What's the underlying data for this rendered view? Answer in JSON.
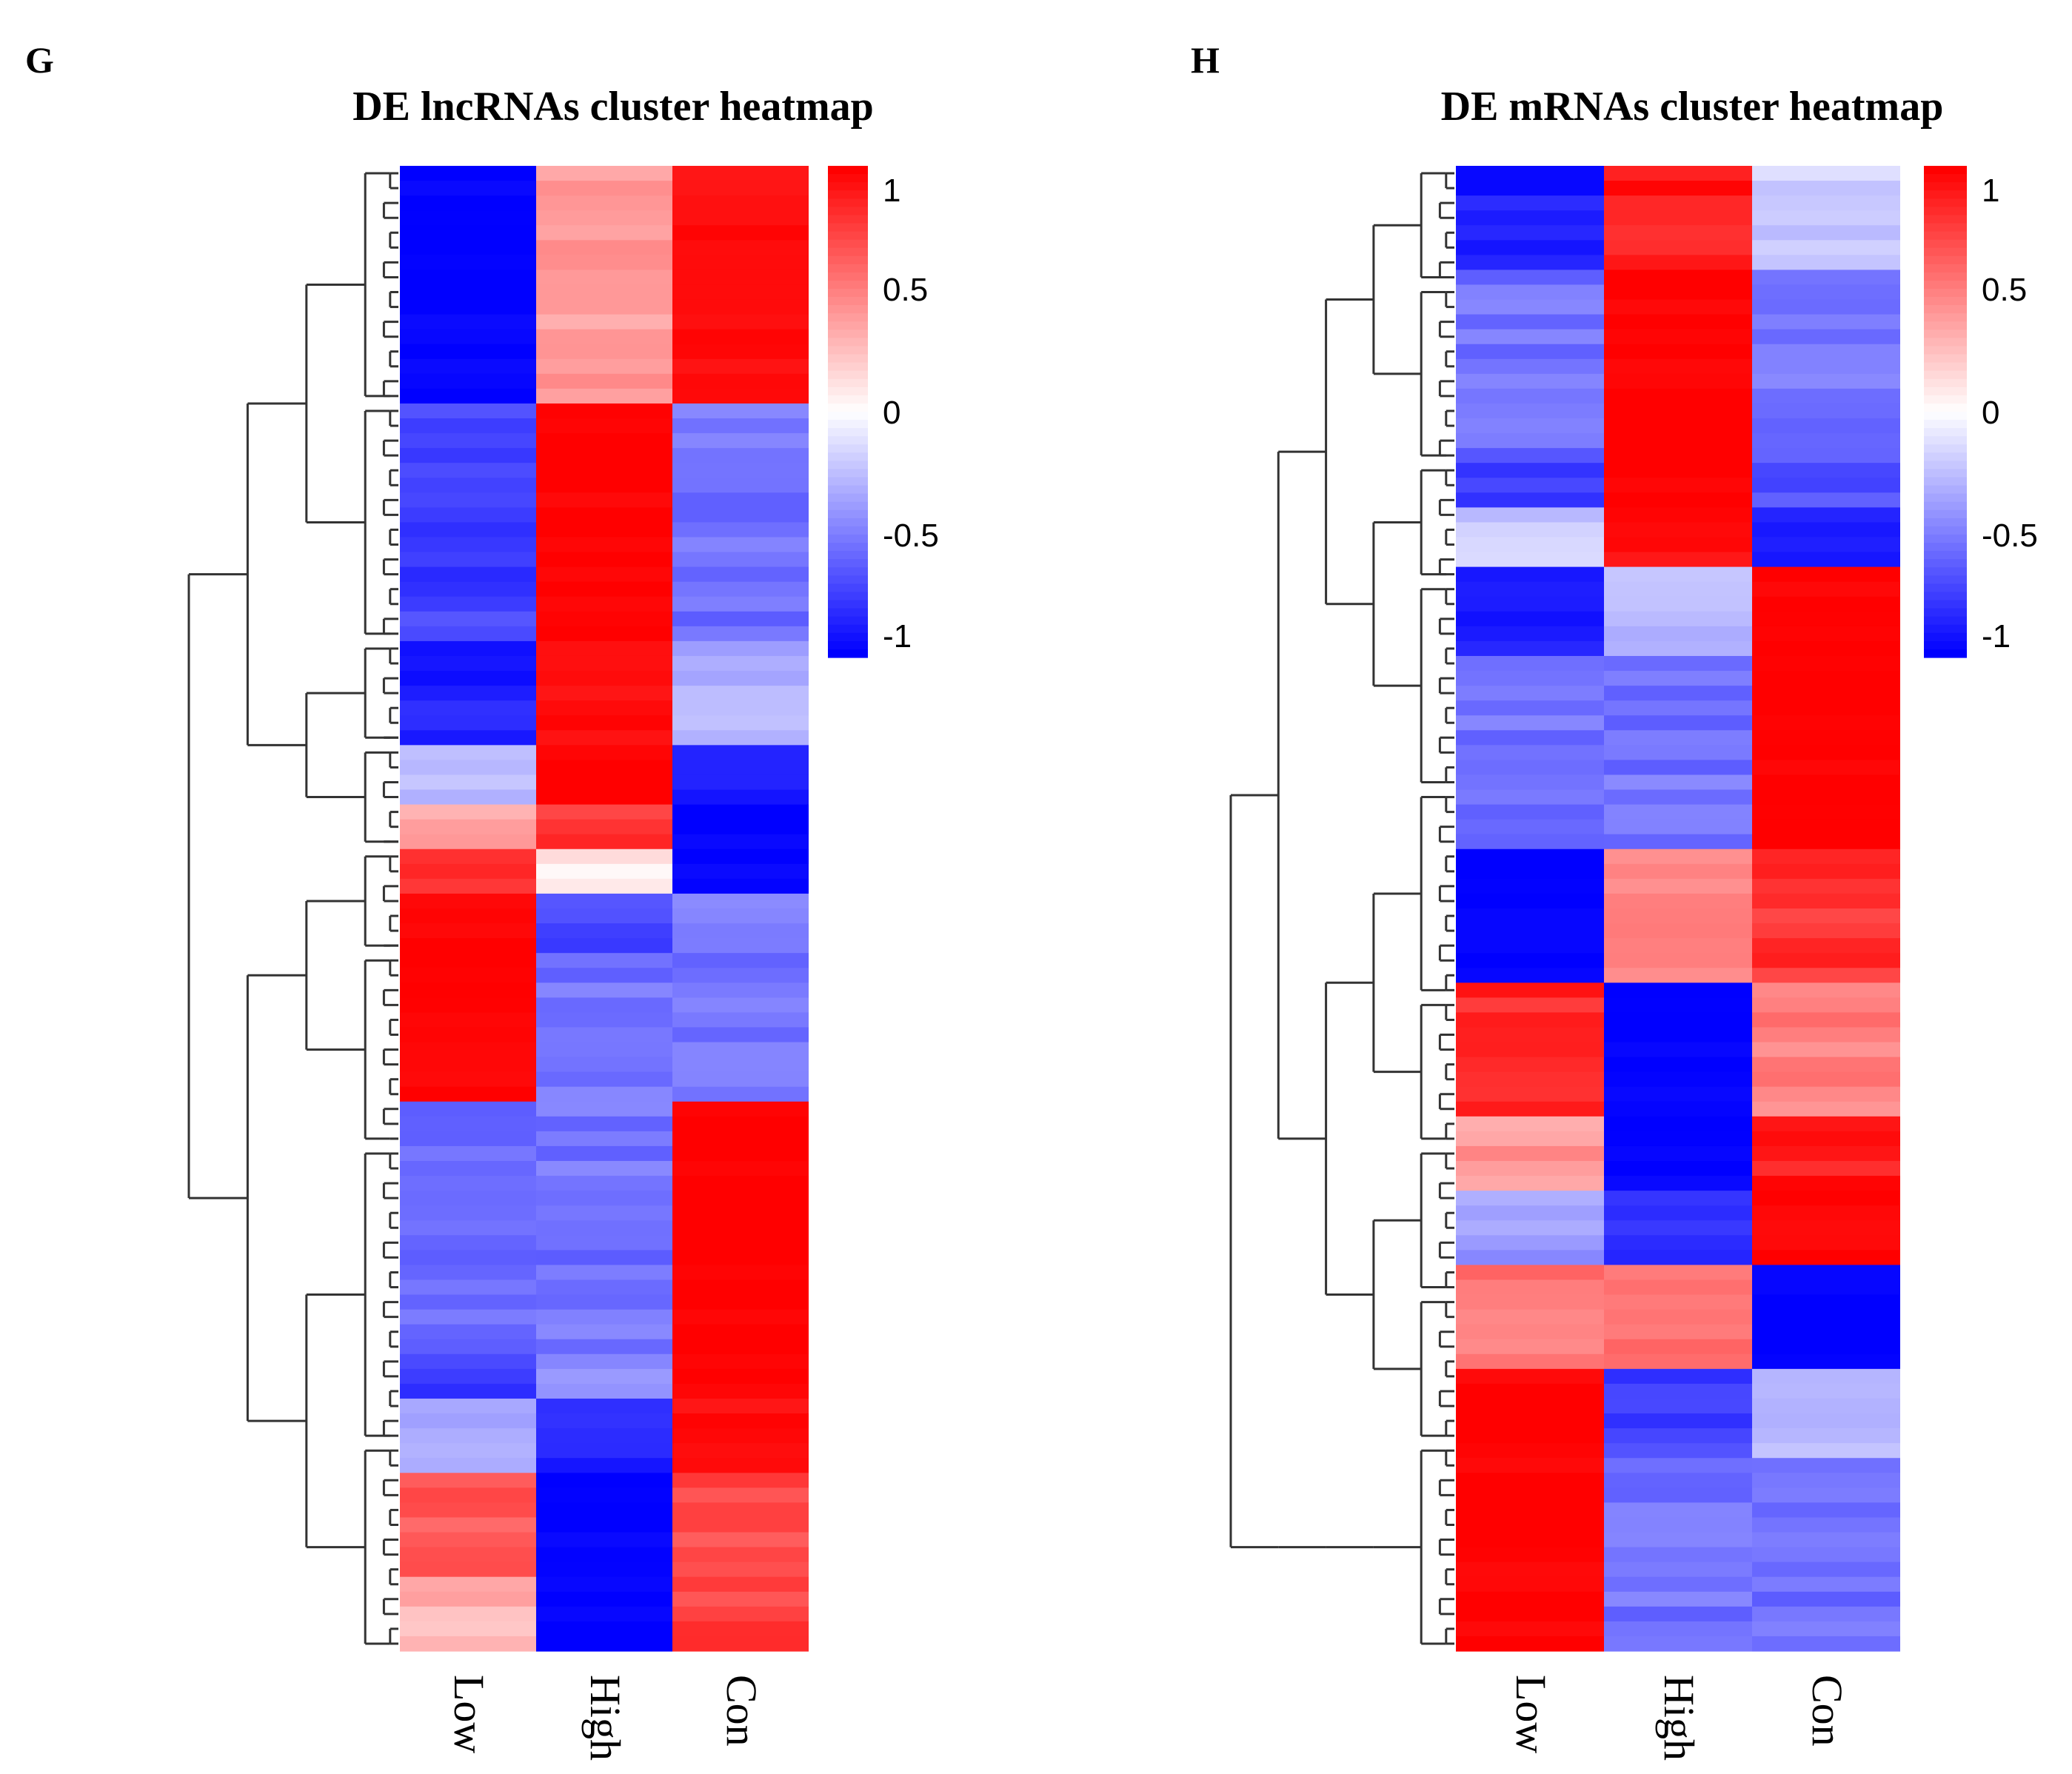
{
  "colors": {
    "low": "#0000ff",
    "mid": "#ffffff",
    "high": "#ff0000",
    "dendrogram": "#333333"
  },
  "chart_data": [
    {
      "type": "heatmap",
      "panel_letter": "G",
      "title": "DE lncRNAs cluster heatmap",
      "columns": [
        "Low",
        "High",
        "Con"
      ],
      "color_scale": {
        "min": -1,
        "max": 1,
        "ticks": [
          1,
          0.5,
          0,
          -0.5,
          -1
        ],
        "tick_labels": [
          "1",
          "0.5",
          "0",
          "-0.5",
          "-1"
        ]
      },
      "row_count": 100,
      "blocks": [
        {
          "rows": 16,
          "values": [
            -1.0,
            0.4,
            0.95
          ]
        },
        {
          "rows": 16,
          "values": [
            -0.75,
            1.0,
            -0.55
          ]
        },
        {
          "rows": 7,
          "values": [
            -0.9,
            0.95,
            -0.3
          ]
        },
        {
          "rows": 4,
          "values": [
            -0.3,
            1.0,
            -0.85
          ]
        },
        {
          "rows": 3,
          "values": [
            0.35,
            0.8,
            -1.0
          ]
        },
        {
          "rows": 3,
          "values": [
            0.85,
            0.1,
            -1.0
          ]
        },
        {
          "rows": 4,
          "values": [
            1.0,
            -0.75,
            -0.5
          ]
        },
        {
          "rows": 10,
          "values": [
            1.0,
            -0.55,
            -0.55
          ]
        },
        {
          "rows": 17,
          "values": [
            -0.55,
            -0.55,
            1.0
          ]
        },
        {
          "rows": 3,
          "values": [
            -0.75,
            -0.4,
            1.0
          ]
        },
        {
          "rows": 5,
          "values": [
            -0.3,
            -0.85,
            0.95
          ]
        },
        {
          "rows": 7,
          "values": [
            0.65,
            -1.0,
            0.7
          ]
        },
        {
          "rows": 5,
          "values": [
            0.3,
            -1.0,
            0.75
          ]
        }
      ],
      "dendrogram_groups": [
        16,
        16,
        7,
        7,
        7,
        13,
        20,
        14
      ]
    },
    {
      "type": "heatmap",
      "panel_letter": "H",
      "title": "DE mRNAs cluster heatmap",
      "columns": [
        "Low",
        "High",
        "Con"
      ],
      "color_scale": {
        "min": -1,
        "max": 1,
        "ticks": [
          1,
          0.5,
          0,
          -0.5,
          -1
        ],
        "tick_labels": [
          "1",
          "0.5",
          "0",
          "-0.5",
          "-1"
        ]
      },
      "row_count": 100,
      "blocks": [
        {
          "rows": 7,
          "values": [
            -0.9,
            0.9,
            -0.2
          ]
        },
        {
          "rows": 12,
          "values": [
            -0.55,
            1.0,
            -0.55
          ]
        },
        {
          "rows": 4,
          "values": [
            -0.75,
            1.0,
            -0.65
          ]
        },
        {
          "rows": 4,
          "values": [
            -0.2,
            0.95,
            -0.9
          ]
        },
        {
          "rows": 6,
          "values": [
            -0.85,
            -0.3,
            1.0
          ]
        },
        {
          "rows": 13,
          "values": [
            -0.55,
            -0.55,
            1.0
          ]
        },
        {
          "rows": 9,
          "values": [
            -1.0,
            0.45,
            0.8
          ]
        },
        {
          "rows": 9,
          "values": [
            0.85,
            -1.0,
            0.5
          ]
        },
        {
          "rows": 5,
          "values": [
            0.4,
            -1.0,
            0.9
          ]
        },
        {
          "rows": 5,
          "values": [
            -0.4,
            -0.8,
            1.0
          ]
        },
        {
          "rows": 7,
          "values": [
            0.55,
            0.6,
            -1.0
          ]
        },
        {
          "rows": 6,
          "values": [
            1.0,
            -0.75,
            -0.3
          ]
        },
        {
          "rows": 13,
          "values": [
            1.0,
            -0.55,
            -0.55
          ]
        }
      ],
      "dendrogram_groups": [
        8,
        12,
        8,
        14,
        14,
        10,
        10,
        10,
        14
      ]
    }
  ]
}
